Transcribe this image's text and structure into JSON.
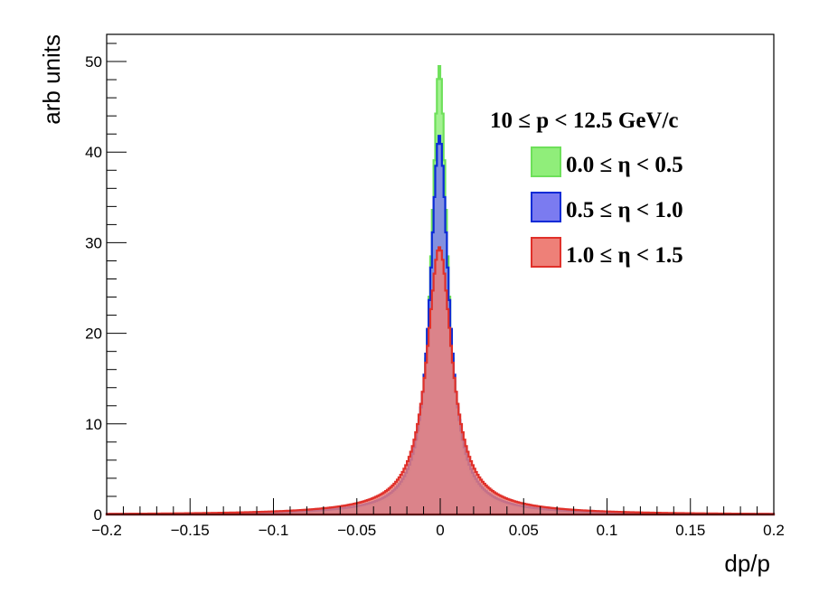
{
  "chart_data": {
    "type": "histogram",
    "title": "",
    "xlabel": "dp/p",
    "ylabel": "arb units",
    "xlim": [
      -0.2,
      0.2
    ],
    "ylim": [
      0,
      53
    ],
    "grid": false,
    "legend_placement": "top-right",
    "legend_header": "10  ≤ p < 12.5 GeV/c",
    "x_ticks": [
      -0.2,
      -0.15,
      -0.1,
      -0.05,
      0,
      0.05,
      0.1,
      0.15,
      0.2
    ],
    "x_tick_labels": [
      "−0.2",
      "−0.15",
      "−0.1",
      "−0.05",
      "0",
      "0.05",
      "0.1",
      "0.15",
      "0.2"
    ],
    "y_ticks": [
      0,
      10,
      20,
      30,
      40,
      50
    ],
    "y_tick_labels": [
      "0",
      "10",
      "20",
      "30",
      "40",
      "50"
    ],
    "series": [
      {
        "name": "0.0  ≤  η < 0.5",
        "fill_color": "#90ee7a",
        "line_color": "#6ee05a",
        "profile": {
          "peak": 49.5,
          "peak_x": -0.0005,
          "core_width": 0.0058,
          "tail_amplitude": 0.35,
          "tail_width": 0.038
        }
      },
      {
        "name": "0.5  ≤  η < 1.0",
        "fill_color": "#7b7bf0",
        "line_color": "#0a2bd6",
        "profile": {
          "peak": 41.8,
          "peak_x": -0.0005,
          "core_width": 0.0068,
          "tail_amplitude": 0.55,
          "tail_width": 0.04
        }
      },
      {
        "name": "1.0  ≤  η < 1.5",
        "fill_color": "#ee8078",
        "line_color": "#e0302a",
        "profile": {
          "peak": 29.5,
          "peak_x": -0.0005,
          "core_width": 0.009,
          "tail_amplitude": 1.0,
          "tail_width": 0.045
        }
      }
    ]
  }
}
